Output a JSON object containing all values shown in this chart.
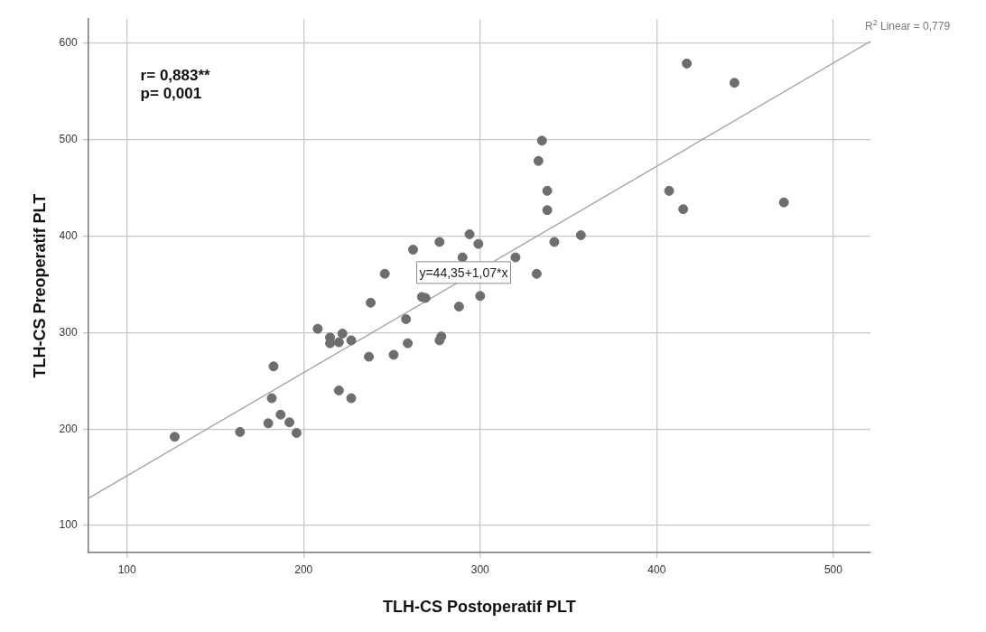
{
  "chart_data": {
    "type": "scatter",
    "xlabel": "TLH-CS Postoperatif PLT",
    "ylabel": "TLH-CS Preoperatif PLT",
    "xlim": [
      78,
      521
    ],
    "ylim": [
      72,
      625
    ],
    "xticks": [
      100,
      200,
      300,
      400,
      500
    ],
    "yticks": [
      100,
      200,
      300,
      400,
      500,
      600
    ],
    "grid": true,
    "legend": false,
    "marker": "circle",
    "series": [
      {
        "color": "#6e6e6e",
        "x": [
          127,
          164,
          180,
          182,
          183,
          187,
          192,
          196,
          208,
          215,
          215,
          220,
          222,
          227,
          220,
          227,
          237,
          238,
          246,
          251,
          258,
          259,
          262,
          335,
          333,
          338,
          338,
          294,
          277,
          299,
          342,
          357,
          332,
          290,
          320,
          267,
          269,
          300,
          288,
          277,
          278,
          417,
          444,
          407,
          415,
          472
        ],
        "values": [
          192,
          197,
          206,
          232,
          265,
          215,
          207,
          196,
          304,
          295,
          289,
          290,
          299,
          292,
          240,
          232,
          275,
          331,
          361,
          277,
          314,
          289,
          386,
          499,
          478,
          447,
          427,
          402,
          394,
          392,
          394,
          401,
          361,
          378,
          378,
          337,
          336,
          338,
          327,
          292,
          296,
          579,
          559,
          447,
          428,
          435
        ]
      },
      {
        "type": "line",
        "color": "#a0a0a0",
        "marker": "none",
        "x": [
          78,
          521
        ],
        "values": [
          128,
          602
        ]
      }
    ],
    "annotations": [
      "r= 0,883**",
      "p= 0,001",
      "R$^{2}$ Linear = 0,779",
      "y=44,35+1,07*x"
    ]
  }
}
